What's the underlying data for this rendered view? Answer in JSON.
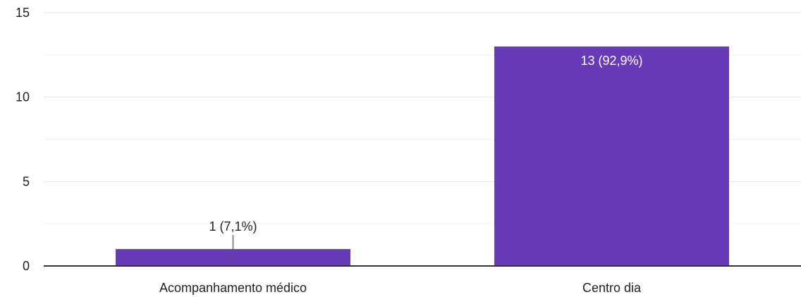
{
  "chart_data": {
    "type": "bar",
    "categories": [
      "Acompanhamento médico",
      "Centro dia"
    ],
    "values": [
      1,
      13
    ],
    "data_labels": [
      "1 (7,1%)",
      "13 (92,9%)"
    ],
    "y_ticks": [
      "0",
      "5",
      "10",
      "15"
    ],
    "ylim": [
      0,
      15
    ],
    "minor_grid_step": 2.5,
    "grid": true,
    "title": "",
    "xlabel": "",
    "ylabel": "",
    "colors": {
      "bar": "#673ab7",
      "grid_major": "#e3e3e3",
      "grid_minor": "#f2f2f2",
      "axis": "#333333",
      "label_inside": "#ffffff",
      "label_outside": "#222222",
      "leader_line": "#888888"
    }
  }
}
